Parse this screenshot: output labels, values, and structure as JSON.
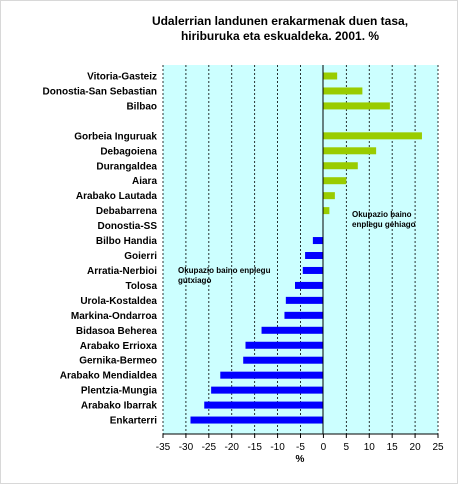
{
  "chart_data": {
    "type": "bar",
    "orientation": "horizontal",
    "title_line1": "Udalerrian landunen erakarmenak duen tasa,",
    "title_line2": "hiriburuka eta eskualdeka. 2001. %",
    "xlabel": "%",
    "xlim": [
      -35,
      25
    ],
    "xticks": [
      "-35",
      "-30",
      "-25",
      "-20",
      "-15",
      "-10",
      "-5",
      "0",
      "5",
      "10",
      "15",
      "20",
      "25"
    ],
    "grid": true,
    "colors": {
      "positive": "#99cc00",
      "negative": "#0000ff",
      "plot_bg": "#ccffff"
    },
    "categories": [
      "Vitoria-Gasteiz",
      "Donostia-San Sebastian",
      "Bilbao",
      "",
      "Gorbeia Inguruak",
      "Debagoiena",
      "Durangaldea",
      "Aiara",
      "Arabako Lautada",
      "Debabarrena",
      "Donostia-SS",
      "Bilbo Handia",
      "Goierri",
      "Arratia-Nerbioi",
      "Tolosa",
      "Urola-Kostaldea",
      "Markina-Ondarroa",
      "Bidasoa Beherea",
      "Arabako Errioxa",
      "Gernika-Bermeo",
      "Arabako Mendialdea",
      "Plentzia-Mungia",
      "Arabako Ibarrak",
      "Enkarterri"
    ],
    "values": [
      3.0,
      8.5,
      14.5,
      null,
      21.5,
      11.5,
      7.5,
      5.0,
      2.5,
      1.3,
      0.0,
      -2.3,
      -4.0,
      -4.5,
      -6.2,
      -8.2,
      -8.5,
      -13.5,
      -17.0,
      -17.5,
      -22.5,
      -24.5,
      -26.0,
      -29.0
    ],
    "annotations": {
      "positive": [
        "Okupazio baino",
        "enplegu gehiago"
      ],
      "negative": [
        "Okupazio baino enplegu",
        "gutxiago"
      ]
    }
  }
}
